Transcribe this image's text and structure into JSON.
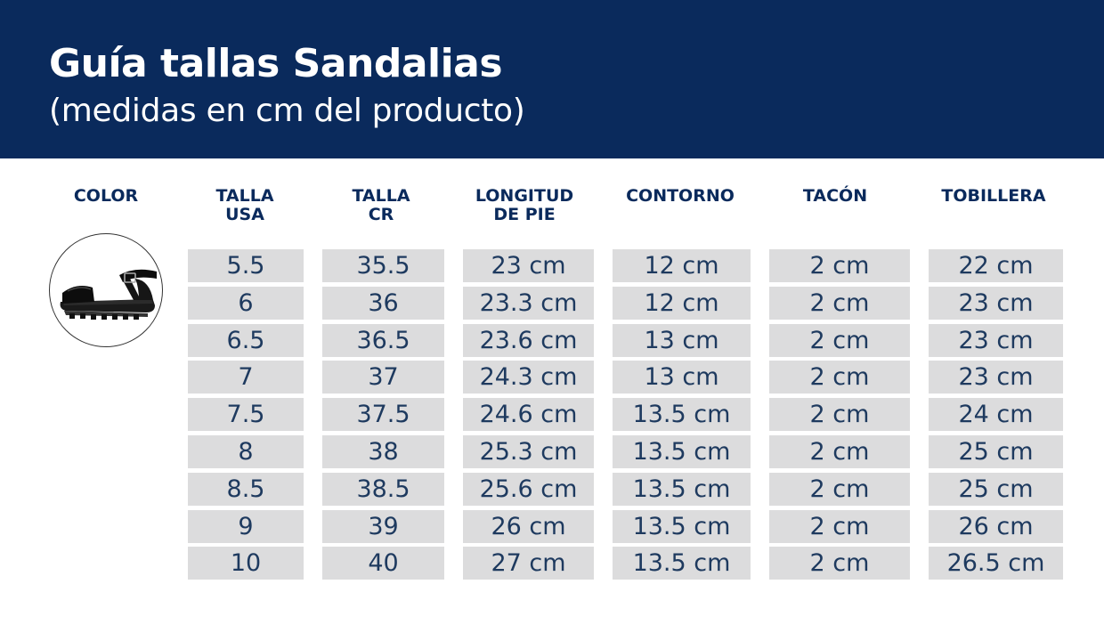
{
  "header": {
    "title": "Guía tallas Sandalias",
    "subtitle": "(medidas en cm del producto)"
  },
  "columns": [
    {
      "label": "COLOR"
    },
    {
      "label": "TALLA\nUSA"
    },
    {
      "label": "TALLA\nCR"
    },
    {
      "label": "LONGITUD\nDE PIE"
    },
    {
      "label": "CONTORNO"
    },
    {
      "label": "TACÓN"
    },
    {
      "label": "TOBILLERA"
    }
  ],
  "product_image": {
    "icon": "black-sandal-icon",
    "color": "#111111"
  },
  "rows": [
    [
      "5.5",
      "35.5",
      "23 cm",
      "12 cm",
      "2 cm",
      "22 cm"
    ],
    [
      "6",
      "36",
      "23.3 cm",
      "12 cm",
      "2 cm",
      "23 cm"
    ],
    [
      "6.5",
      "36.5",
      "23.6 cm",
      "13 cm",
      "2 cm",
      "23 cm"
    ],
    [
      "7",
      "37",
      "24.3 cm",
      "13 cm",
      "2 cm",
      "23 cm"
    ],
    [
      "7.5",
      "37.5",
      "24.6 cm",
      "13.5 cm",
      "2 cm",
      "24 cm"
    ],
    [
      "8",
      "38",
      "25.3 cm",
      "13.5 cm",
      "2 cm",
      "25 cm"
    ],
    [
      "8.5",
      "38.5",
      "25.6 cm",
      "13.5 cm",
      "2 cm",
      "25 cm"
    ],
    [
      "9",
      "39",
      "26 cm",
      "13.5 cm",
      "2 cm",
      "26 cm"
    ],
    [
      "10",
      "40",
      "27 cm",
      "13.5 cm",
      "2 cm",
      "26.5 cm"
    ]
  ],
  "colors": {
    "header_bg": "#0a2a5c",
    "cell_bg": "#dcdcdd",
    "heading_text": "#0a2a5c",
    "cell_text": "#1e3a5f"
  }
}
